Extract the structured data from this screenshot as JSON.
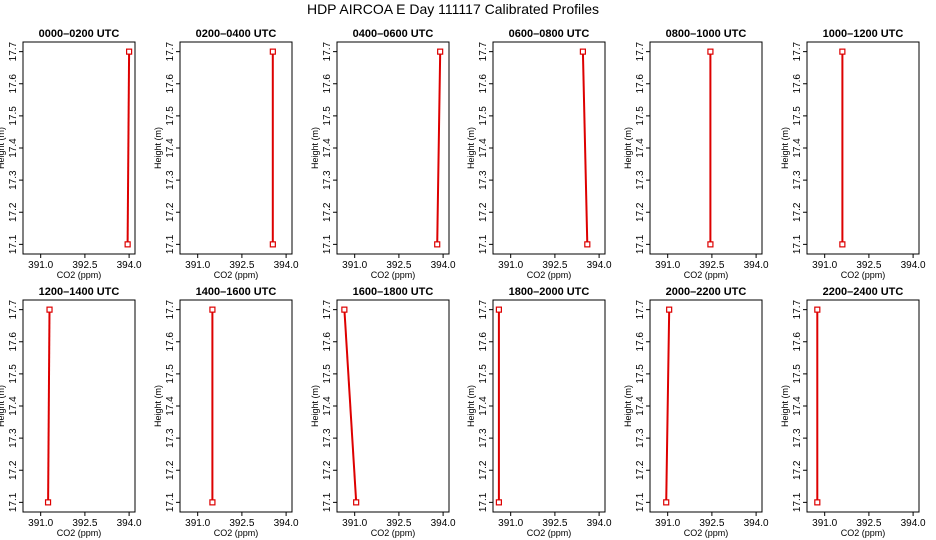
{
  "figure_title": "HDP AIRCOA E  Day 111117  Calibrated Profiles",
  "chart_data": {
    "type": "line",
    "xlabel": "CO2 (ppm)",
    "ylabel": "Height (m)",
    "xlim": [
      390.4,
      394.2
    ],
    "ylim": [
      17.07,
      17.73
    ],
    "xticks": [
      391.0,
      392.5,
      394.0
    ],
    "xtick_labels": [
      "391.0",
      "392.5",
      "394.0"
    ],
    "yticks": [
      17.1,
      17.2,
      17.3,
      17.4,
      17.5,
      17.6,
      17.7
    ],
    "ytick_labels": [
      "17.1",
      "17.2",
      "17.3",
      "17.4",
      "17.5",
      "17.6",
      "17.7"
    ],
    "line_color": "#dd0000",
    "marker_color": "#dd0000",
    "grid": false,
    "panels": [
      {
        "title": "0000–0200 UTC",
        "x": [
          393.95,
          394.0
        ],
        "y": [
          17.1,
          17.7
        ]
      },
      {
        "title": "0200–0400 UTC",
        "x": [
          393.55,
          393.55
        ],
        "y": [
          17.1,
          17.7
        ]
      },
      {
        "title": "0400–0600 UTC",
        "x": [
          393.8,
          393.9
        ],
        "y": [
          17.1,
          17.7
        ]
      },
      {
        "title": "0600–0800 UTC",
        "x": [
          393.6,
          393.45
        ],
        "y": [
          17.1,
          17.7
        ]
      },
      {
        "title": "0800–1000 UTC",
        "x": [
          392.45,
          392.45
        ],
        "y": [
          17.1,
          17.7
        ]
      },
      {
        "title": "1000–1200 UTC",
        "x": [
          391.6,
          391.6
        ],
        "y": [
          17.1,
          17.7
        ]
      },
      {
        "title": "1200–1400 UTC",
        "x": [
          391.25,
          391.3
        ],
        "y": [
          17.1,
          17.7
        ]
      },
      {
        "title": "1400–1600 UTC",
        "x": [
          391.5,
          391.5
        ],
        "y": [
          17.1,
          17.7
        ]
      },
      {
        "title": "1600–1800 UTC",
        "x": [
          391.05,
          390.65
        ],
        "y": [
          17.1,
          17.7
        ]
      },
      {
        "title": "1800–2000 UTC",
        "x": [
          390.6,
          390.6
        ],
        "y": [
          17.1,
          17.7
        ]
      },
      {
        "title": "2000–2200 UTC",
        "x": [
          390.95,
          391.05
        ],
        "y": [
          17.1,
          17.7
        ]
      },
      {
        "title": "2200–2400 UTC",
        "x": [
          390.75,
          390.75
        ],
        "y": [
          17.1,
          17.7
        ]
      }
    ]
  }
}
